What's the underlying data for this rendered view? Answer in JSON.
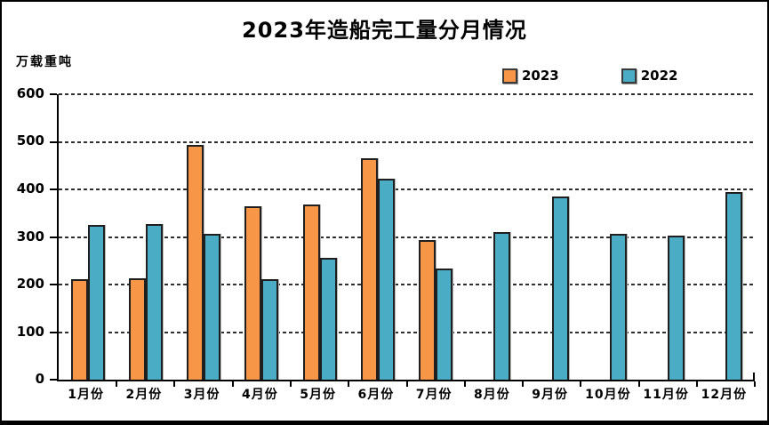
{
  "chart_data": {
    "type": "bar",
    "title": "2023年造船完工量分月情况",
    "unit_label": "万载重吨",
    "categories": [
      "1月份",
      "2月份",
      "3月份",
      "4月份",
      "5月份",
      "6月份",
      "7月份",
      "8月份",
      "9月份",
      "10月份",
      "11月份",
      "12月份"
    ],
    "series": [
      {
        "name": "2023",
        "color": "#F79646",
        "values": [
          212,
          214,
          494,
          364,
          368,
          466,
          294,
          null,
          null,
          null,
          null,
          null
        ]
      },
      {
        "name": "2022",
        "color": "#4BACC6",
        "values": [
          326,
          328,
          306,
          211,
          256,
          422,
          234,
          310,
          386,
          307,
          303,
          395
        ]
      }
    ],
    "ylim": [
      0,
      600
    ],
    "yticks": [
      0,
      100,
      200,
      300,
      400,
      500,
      600
    ],
    "ylabel": "万载重吨",
    "xlabel": "",
    "grid": "horizontal-dashed",
    "legend_position": "top-right",
    "bar_border_color": "#1f1f1f",
    "axis_color": "#000000",
    "background_color": "#ffffff"
  }
}
